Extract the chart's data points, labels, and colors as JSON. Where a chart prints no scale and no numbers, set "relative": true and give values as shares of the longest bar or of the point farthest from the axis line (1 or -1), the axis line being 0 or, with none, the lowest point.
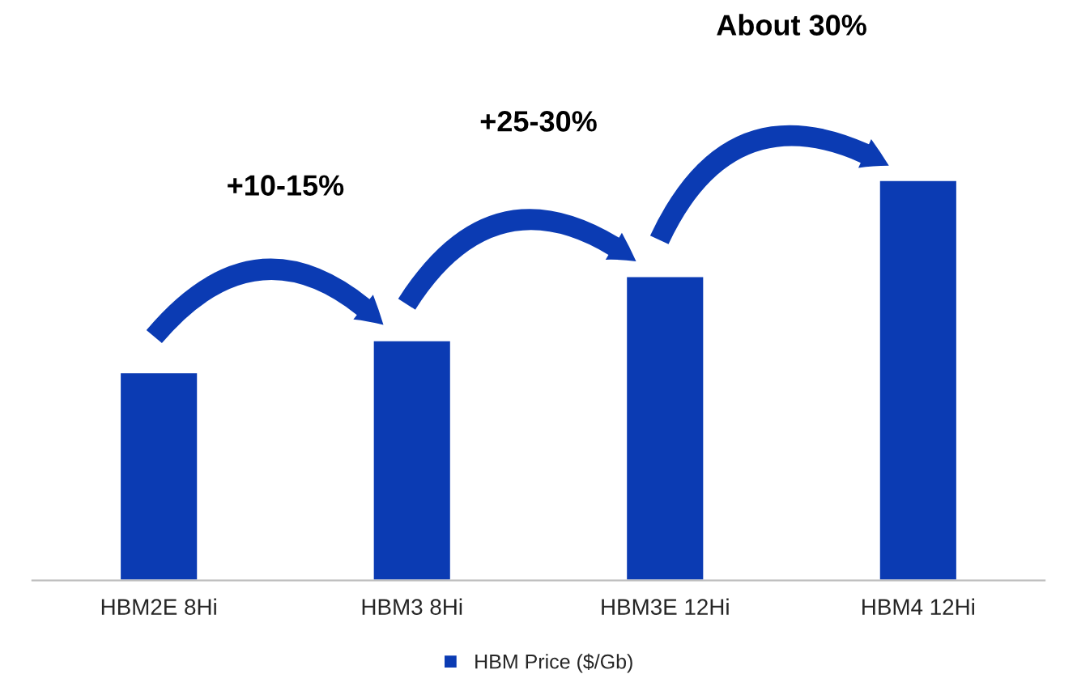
{
  "chart_data": {
    "type": "bar",
    "relative": true,
    "categories": [
      "HBM2E 8Hi",
      "HBM3 8Hi",
      "HBM3E 12Hi",
      "HBM4 12Hi"
    ],
    "series": [
      {
        "name": "HBM Price ($/Gb)",
        "color": "#0b3bb3",
        "values": [
          0.52,
          0.6,
          0.76,
          1.0
        ]
      }
    ],
    "annotations": [
      "+10-15%",
      "+25-30%",
      "About 30%"
    ],
    "legend": "bottom",
    "grid": false
  }
}
